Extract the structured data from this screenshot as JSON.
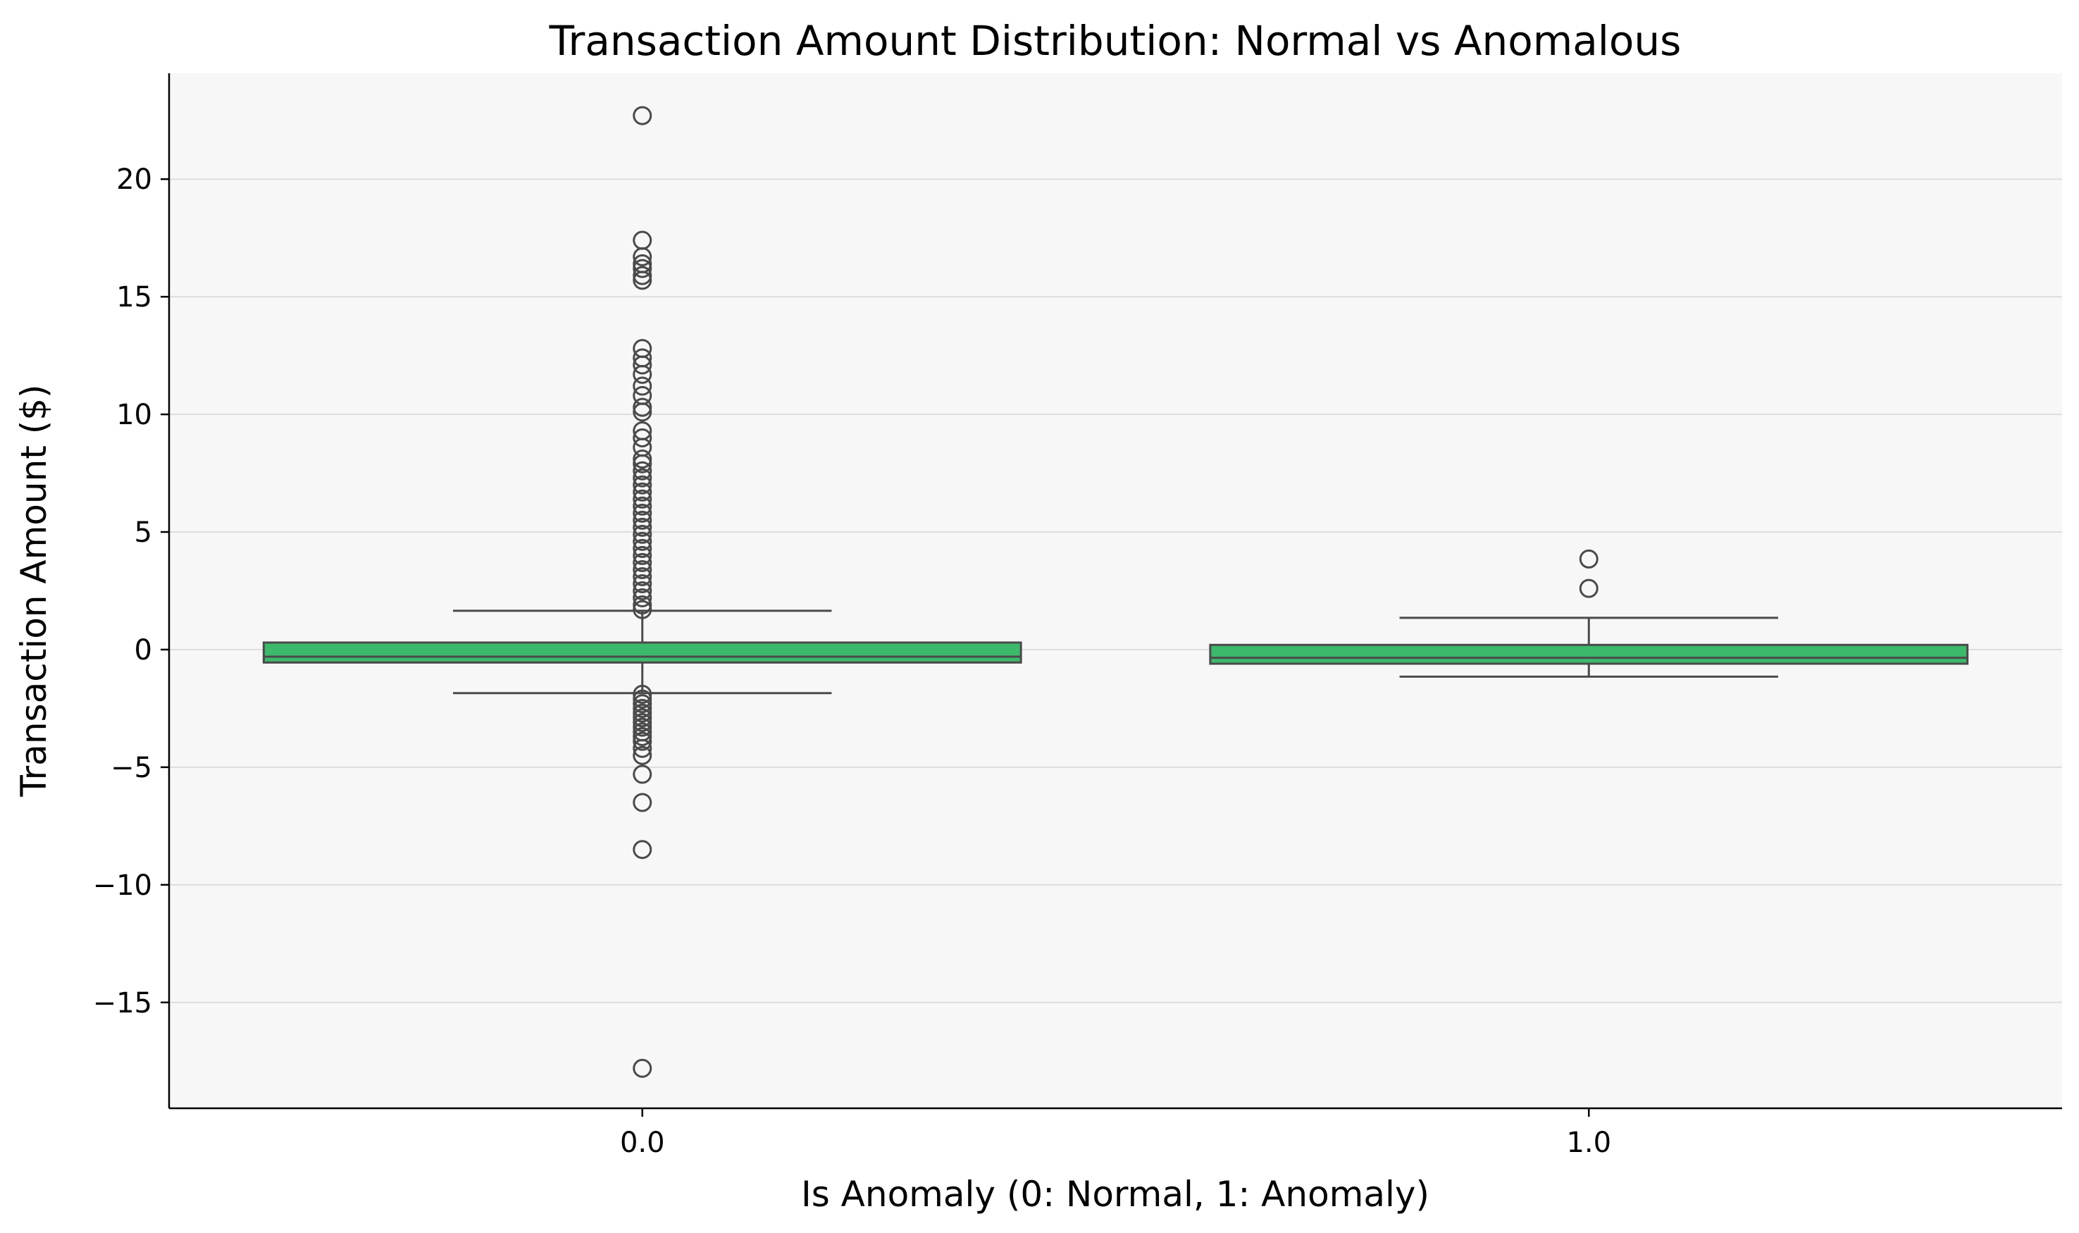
{
  "chart_data": {
    "type": "box",
    "title": "Transaction Amount Distribution: Normal vs Anomalous",
    "xlabel": "Is Anomaly (0: Normal, 1: Anomaly)",
    "ylabel": "Transaction Amount ($)",
    "categories": [
      "0.0",
      "1.0"
    ],
    "ylim": [
      -19.5,
      24.5
    ],
    "yticks": [
      -15,
      -10,
      -5,
      0,
      5,
      10,
      15,
      20
    ],
    "grid": "horizontal",
    "box_color": "#3cb96b",
    "edge_color": "#4a4a4a",
    "background_color": "#f7f7f7",
    "boxes": [
      {
        "category": "0.0",
        "whisker_low": -1.85,
        "q1": -0.55,
        "median": -0.3,
        "q3": 0.3,
        "whisker_high": 1.65,
        "outliers": [
          22.7,
          17.4,
          16.7,
          16.4,
          16.2,
          15.9,
          15.7,
          12.8,
          12.4,
          12.1,
          11.7,
          11.2,
          10.8,
          10.3,
          10.1,
          9.3,
          9.0,
          8.6,
          8.1,
          7.9,
          7.6,
          7.3,
          7.0,
          6.7,
          6.4,
          6.1,
          5.8,
          5.5,
          5.2,
          4.9,
          4.6,
          4.3,
          4.0,
          3.7,
          3.4,
          3.1,
          2.8,
          2.5,
          2.2,
          1.9,
          1.7,
          -1.9,
          -2.1,
          -2.3,
          -2.5,
          -2.7,
          -2.9,
          -3.1,
          -3.3,
          -3.5,
          -3.7,
          -3.9,
          -4.2,
          -4.5,
          -5.3,
          -6.5,
          -8.5,
          -17.8
        ]
      },
      {
        "category": "1.0",
        "whisker_low": -1.15,
        "q1": -0.6,
        "median": -0.35,
        "q3": 0.2,
        "whisker_high": 1.35,
        "outliers": [
          3.85,
          2.6
        ]
      }
    ]
  }
}
